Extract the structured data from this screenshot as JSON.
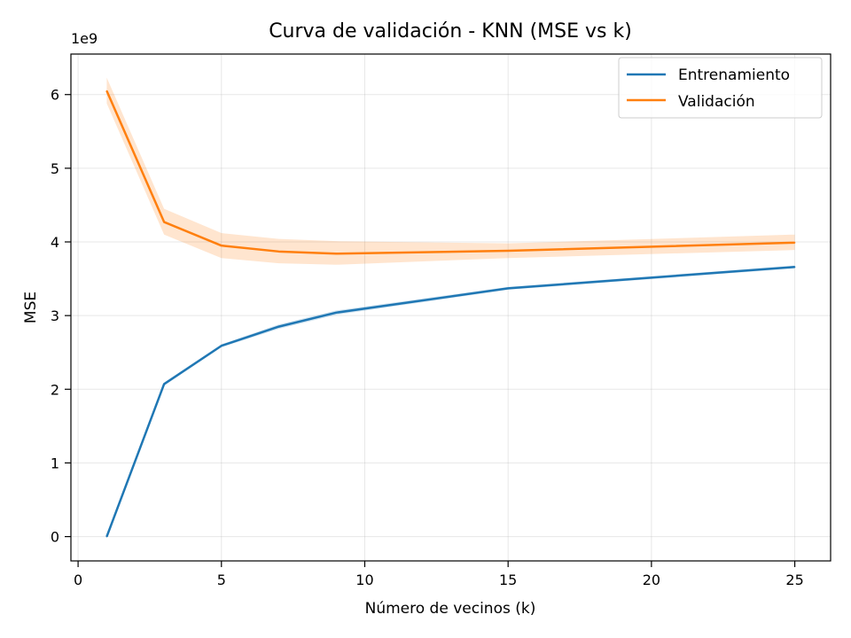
{
  "chart_data": {
    "type": "line",
    "title": "Curva de validación - KNN (MSE vs k)",
    "xlabel": "Número de vecinos (k)",
    "ylabel": "MSE",
    "y_offset_label": "1e9",
    "xlim": [
      -0.25,
      26.25
    ],
    "ylim": [
      -0.33,
      6.55
    ],
    "xticks": [
      0,
      5,
      10,
      15,
      20,
      25
    ],
    "yticks": [
      0,
      1,
      2,
      3,
      4,
      5,
      6
    ],
    "grid": true,
    "legend_position": "top-right",
    "x": [
      1,
      3,
      5,
      7,
      9,
      15,
      25
    ],
    "series": [
      {
        "name": "Entrenamiento",
        "color": "#1f77b4",
        "values": [
          0.0,
          2.07,
          2.59,
          2.85,
          3.04,
          3.37,
          3.66
        ],
        "band_lower": [
          0.0,
          2.05,
          2.57,
          2.82,
          3.01,
          3.35,
          3.64
        ],
        "band_upper": [
          0.0,
          2.09,
          2.61,
          2.88,
          3.07,
          3.39,
          3.68
        ]
      },
      {
        "name": "Validación",
        "color": "#ff7f0e",
        "values": [
          6.05,
          4.27,
          3.95,
          3.87,
          3.84,
          3.88,
          3.99
        ],
        "band_lower": [
          5.88,
          4.1,
          3.78,
          3.71,
          3.69,
          3.78,
          3.89
        ],
        "band_upper": [
          6.23,
          4.45,
          4.12,
          4.04,
          4.01,
          3.98,
          4.1
        ]
      }
    ]
  }
}
